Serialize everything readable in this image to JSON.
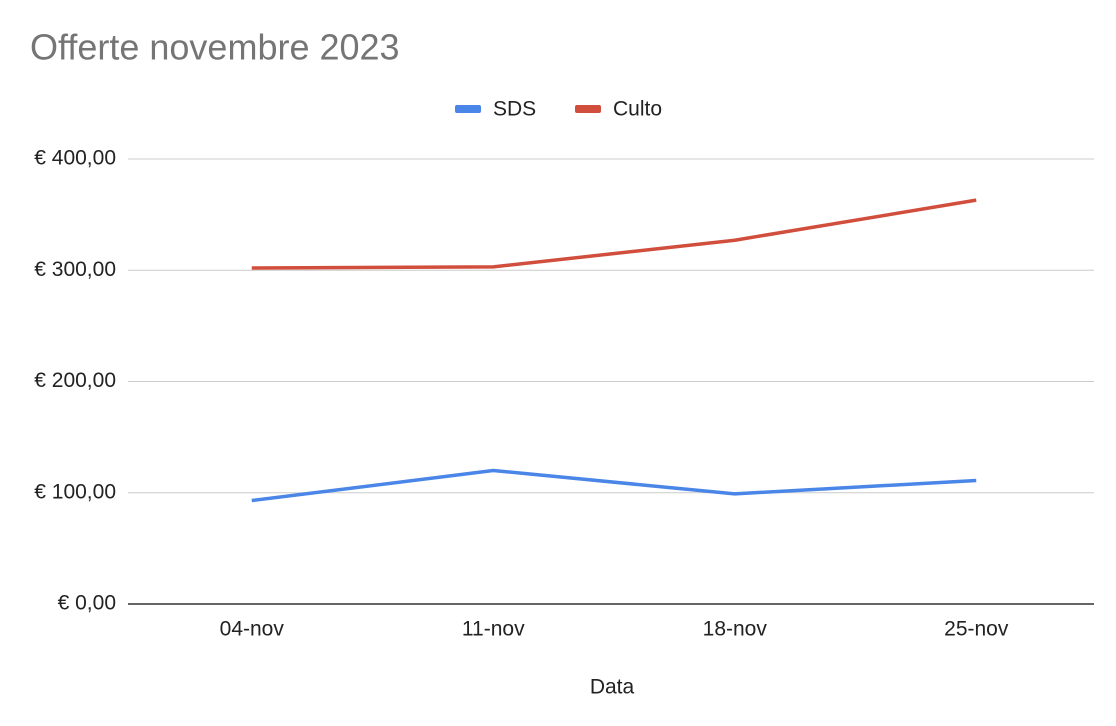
{
  "chart_data": {
    "type": "line",
    "title": "Offerte novembre 2023",
    "x_label": "Data",
    "categories": [
      "04-nov",
      "11-nov",
      "18-nov",
      "25-nov"
    ],
    "series": [
      {
        "name": "SDS",
        "color": "#4a86e8",
        "values": [
          93,
          120,
          99,
          111
        ]
      },
      {
        "name": "Culto",
        "color": "#d24e3c",
        "values": [
          302,
          303,
          327,
          363
        ]
      }
    ],
    "ylim": [
      0,
      400
    ],
    "yticks": [
      {
        "value": 0,
        "label": "€ 0,00"
      },
      {
        "value": 100,
        "label": "€ 100,00"
      },
      {
        "value": 200,
        "label": "€ 200,00"
      },
      {
        "value": 300,
        "label": "€ 300,00"
      },
      {
        "value": 400,
        "label": "€ 400,00"
      }
    ],
    "grid": true,
    "legend": "top"
  }
}
